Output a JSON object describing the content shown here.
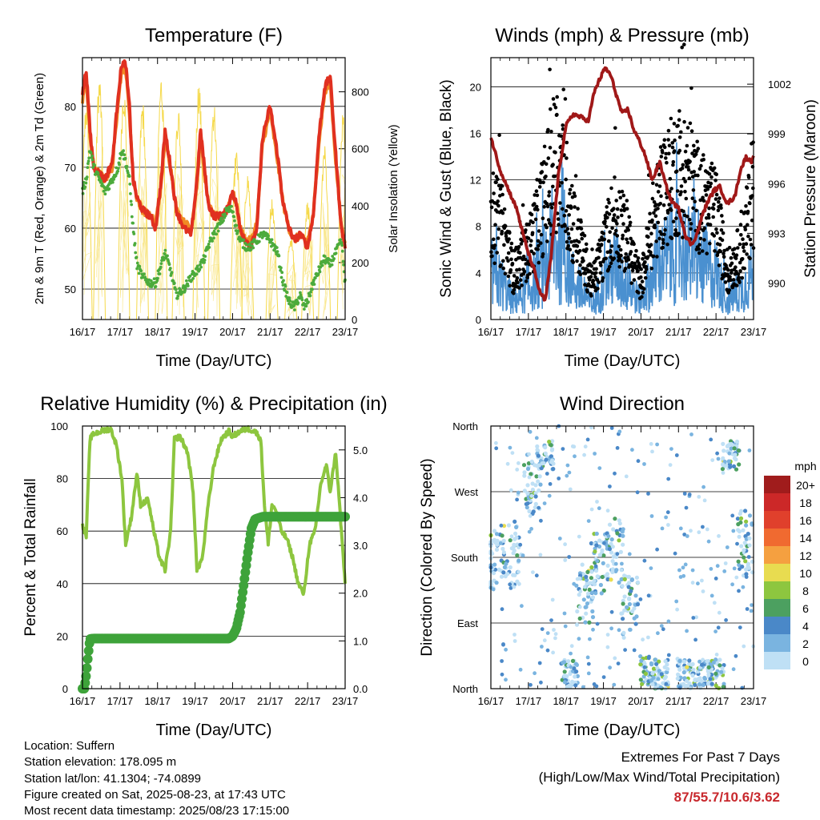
{
  "common": {
    "x_tick_labels": [
      "16/17",
      "17/17",
      "18/17",
      "19/17",
      "20/17",
      "21/17",
      "22/17",
      "23/17"
    ],
    "xlabel": "Time (Day/UTC)"
  },
  "info": {
    "location": "Location: Suffern",
    "elevation": "Station elevation: 178.095 m",
    "latlon": "Station lat/lon: 41.1304; -74.0899",
    "created": "Figure created on Sat, 2025-08-23, at 17:43 UTC",
    "recent": "Most recent data timestamp: 2025/08/23 17:15:00"
  },
  "extremes": {
    "line1": "Extremes For Past 7 Days",
    "line2": "(High/Low/Max Wind/Total Precipitation)",
    "values": "87/55.7/10.6/3.62"
  },
  "chart_data": [
    {
      "id": "temperature",
      "type": "line",
      "title": "Temperature (F)",
      "xlabel": "Time (Day/UTC)",
      "ylabel": "2m & 9m T (Red, Orange) & 2m Td (Green)",
      "y2label": "Solar Insolation (Yellow)",
      "xlim": [
        0,
        7
      ],
      "ylim": [
        45,
        88
      ],
      "y2lim": [
        0,
        920
      ],
      "yticks": [
        50,
        60,
        70,
        80
      ],
      "y2ticks": [
        0,
        200,
        400,
        600,
        800
      ],
      "x": [
        0,
        0.1,
        0.2,
        0.3,
        0.45,
        0.6,
        0.8,
        0.95,
        1.05,
        1.15,
        1.25,
        1.35,
        1.45,
        1.6,
        1.8,
        1.95,
        2.1,
        2.2,
        2.35,
        2.5,
        2.7,
        2.9,
        3.05,
        3.15,
        3.25,
        3.35,
        3.5,
        3.7,
        3.85,
        4.0,
        4.1,
        4.2,
        4.35,
        4.5,
        4.65,
        4.8,
        5.0,
        5.2,
        5.35,
        5.5,
        5.65,
        5.8,
        5.9,
        6.0,
        6.15,
        6.3,
        6.45,
        6.6,
        6.75,
        6.9,
        7.0
      ],
      "series": [
        {
          "name": "2m T",
          "color": "#e03020",
          "values": [
            82,
            86,
            76,
            70,
            69,
            68,
            71,
            82,
            87,
            87,
            80,
            68,
            65,
            63,
            62,
            60,
            68,
            76,
            70,
            63,
            60,
            59,
            68,
            76,
            70,
            64,
            62,
            62,
            63,
            66,
            64,
            60,
            58,
            57,
            60,
            75,
            80,
            72,
            64,
            60,
            58,
            59,
            58,
            57,
            62,
            75,
            83,
            85,
            72,
            60,
            57
          ]
        },
        {
          "name": "9m T",
          "color": "#f08a24",
          "values": [
            81,
            85,
            75,
            70,
            69,
            68,
            70,
            81,
            86,
            86,
            79,
            68,
            65,
            63,
            62,
            61,
            67,
            75,
            70,
            63,
            61,
            60,
            67,
            75,
            69,
            64,
            62,
            62,
            63,
            66,
            64,
            60,
            58,
            58,
            61,
            74,
            79,
            71,
            64,
            60,
            58,
            59,
            58,
            58,
            62,
            74,
            82,
            84,
            71,
            60,
            58
          ]
        },
        {
          "name": "2m Td",
          "color": "#4cab3c",
          "values": [
            66,
            68,
            73,
            70,
            68,
            66,
            68,
            70,
            73,
            71,
            68,
            60,
            54,
            52,
            51,
            51,
            54,
            56,
            53,
            49,
            50,
            52,
            53,
            54,
            55,
            57,
            59,
            61,
            63,
            63,
            60,
            58,
            57,
            57,
            58,
            59,
            58,
            56,
            51,
            48,
            47,
            49,
            47,
            48,
            51,
            53,
            55,
            54,
            56,
            58,
            51
          ]
        },
        {
          "name": "Solar Insolation",
          "axis": "y2",
          "color": "#f5d94a",
          "peaks": [
            0.1,
            0.45,
            1.1,
            1.6,
            2.1,
            2.55,
            3.1,
            3.5,
            4.1,
            4.4,
            5.05,
            5.55,
            6.0,
            6.45,
            6.95
          ],
          "peak_values": [
            780,
            870,
            840,
            780,
            870,
            760,
            850,
            780,
            600,
            520,
            430,
            300,
            420,
            620,
            750
          ]
        }
      ]
    },
    {
      "id": "winds",
      "type": "scatter",
      "title": "Winds (mph) & Pressure (mb)",
      "xlabel": "Time (Day/UTC)",
      "ylabel": "Sonic Wind & Gust (Blue, Black)",
      "y2label": "Station Pressure (Maroon)",
      "xlim": [
        0,
        7
      ],
      "ylim": [
        0,
        22.5
      ],
      "y2lim": [
        987.8,
        1003.6
      ],
      "yticks": [
        0,
        4,
        8,
        12,
        16,
        20
      ],
      "y2ticks": [
        990,
        993,
        996,
        999,
        1002
      ],
      "wind_envelope_x": [
        0,
        0.3,
        0.6,
        1.0,
        1.4,
        1.7,
        2.0,
        2.3,
        2.7,
        3.0,
        3.3,
        3.6,
        4.0,
        4.3,
        4.6,
        5.0,
        5.3,
        5.6,
        6.0,
        6.3,
        6.7,
        7.0
      ],
      "wind_mean": [
        4,
        3,
        1.5,
        2.5,
        4.5,
        6,
        5,
        2.5,
        1.2,
        3,
        4.5,
        3,
        1.5,
        3.5,
        5,
        6,
        5.5,
        4.5,
        4,
        1.5,
        2.5,
        4
      ],
      "gust_mean": [
        9,
        8,
        4,
        6,
        10,
        14,
        11,
        7,
        3,
        6,
        9,
        7,
        3,
        8,
        11,
        13,
        12,
        10,
        9,
        4,
        6,
        11
      ],
      "series": [
        {
          "name": "Sonic Wind",
          "color": "#4a90d0"
        },
        {
          "name": "Gust",
          "color": "#000000"
        },
        {
          "name": "Station Pressure",
          "axis": "y2",
          "color": "#a01818",
          "x": [
            0,
            0.1,
            0.25,
            0.4,
            0.55,
            0.7,
            0.85,
            1.0,
            1.15,
            1.3,
            1.45,
            1.6,
            1.8,
            2.0,
            2.2,
            2.4,
            2.6,
            2.75,
            2.9,
            3.05,
            3.2,
            3.35,
            3.5,
            3.65,
            3.8,
            3.95,
            4.1,
            4.3,
            4.5,
            4.65,
            4.8,
            5.0,
            5.2,
            5.35,
            5.5,
            5.65,
            5.8,
            5.95,
            6.1,
            6.3,
            6.5,
            6.65,
            6.8,
            6.95,
            7.0
          ],
          "values": [
            998.8,
            998.0,
            996.8,
            996.0,
            995.2,
            994.4,
            993.0,
            991.8,
            990.8,
            989.5,
            988.9,
            991.5,
            996.5,
            999.5,
            1000.2,
            1000.0,
            999.8,
            1001.5,
            1002.3,
            1003.0,
            1002.5,
            1001.3,
            1000.2,
            1000.5,
            999.3,
            998.6,
            997.8,
            996.2,
            997.3,
            996.0,
            995.0,
            994.5,
            992.8,
            992.3,
            993.0,
            994.2,
            995.0,
            995.6,
            995.8,
            994.8,
            995.2,
            996.8,
            997.6,
            997.3,
            997.8
          ]
        }
      ]
    },
    {
      "id": "humidity",
      "type": "line",
      "title": "Relative Humidity (%) & Precipitation (in)",
      "xlabel": "Time (Day/UTC)",
      "ylabel": "Percent & Total Rainfall",
      "xlim": [
        0,
        7
      ],
      "ylim": [
        0,
        100
      ],
      "y2lim": [
        0,
        5.5
      ],
      "yticks": [
        0,
        20,
        40,
        60,
        80,
        100
      ],
      "y2ticks": [
        "0.0",
        "1.0",
        "2.0",
        "3.0",
        "4.0",
        "5.0"
      ],
      "series": [
        {
          "name": "Relative Humidity",
          "color": "#8dc63f",
          "x": [
            0,
            0.1,
            0.2,
            0.3,
            0.5,
            0.75,
            0.9,
            1.05,
            1.15,
            1.3,
            1.45,
            1.55,
            1.75,
            1.9,
            2.05,
            2.2,
            2.35,
            2.45,
            2.6,
            2.8,
            2.95,
            3.05,
            3.2,
            3.35,
            3.5,
            3.7,
            3.9,
            4.0,
            4.2,
            4.4,
            4.6,
            4.75,
            4.85,
            4.95,
            5.05,
            5.15,
            5.3,
            5.45,
            5.6,
            5.75,
            5.9,
            6.05,
            6.2,
            6.35,
            6.5,
            6.6,
            6.75,
            6.9,
            7.0
          ],
          "values": [
            62,
            58,
            95,
            97,
            98,
            99,
            93,
            80,
            55,
            65,
            82,
            70,
            72,
            60,
            50,
            45,
            60,
            95,
            96,
            90,
            75,
            45,
            50,
            70,
            85,
            95,
            98,
            96,
            98,
            99,
            98,
            95,
            70,
            55,
            70,
            68,
            60,
            57,
            50,
            40,
            36,
            55,
            60,
            78,
            85,
            75,
            90,
            60,
            40
          ]
        },
        {
          "name": "Total Rainfall",
          "axis": "y2",
          "color": "#3ea33a",
          "x": [
            0,
            0.05,
            0.1,
            0.15,
            0.2,
            0.3,
            0.5,
            1.0,
            1.5,
            2.0,
            2.5,
            3.0,
            3.5,
            3.9,
            4.0,
            4.1,
            4.2,
            4.3,
            4.4,
            4.5,
            4.6,
            4.8,
            5.0,
            5.5,
            6.0,
            6.5,
            7.0
          ],
          "values": [
            0,
            0,
            0.3,
            0.7,
            1.04,
            1.05,
            1.05,
            1.05,
            1.05,
            1.05,
            1.05,
            1.05,
            1.05,
            1.05,
            1.1,
            1.25,
            1.6,
            2.2,
            2.8,
            3.35,
            3.55,
            3.6,
            3.6,
            3.6,
            3.6,
            3.6,
            3.6
          ]
        }
      ]
    },
    {
      "id": "winddir",
      "type": "scatter",
      "title": "Wind Direction",
      "xlabel": "Time (Day/UTC)",
      "ylabel": "Direction (Colored By Speed)",
      "xlim": [
        0,
        7
      ],
      "ylim": [
        0,
        360
      ],
      "yticks": [
        "North",
        "East",
        "South",
        "West",
        "North"
      ],
      "cluster_x": [
        0.1,
        0.55,
        1.1,
        1.45,
        2.1,
        2.5,
        2.9,
        3.3,
        3.7,
        4.2,
        4.5,
        5.2,
        5.6,
        6.0,
        6.4,
        6.8
      ],
      "cluster_dir": [
        180,
        185,
        280,
        320,
        20,
        130,
        170,
        190,
        110,
        25,
        20,
        22,
        18,
        20,
        320,
        200
      ],
      "colorbar": {
        "unit": "mph",
        "labels": [
          "20+",
          "18",
          "16",
          "14",
          "12",
          "10",
          "8",
          "6",
          "4",
          "2",
          "0"
        ],
        "colors": [
          "#a01c1c",
          "#cc2828",
          "#e0402c",
          "#f06a30",
          "#f5a040",
          "#e8dc50",
          "#8dc63f",
          "#4ca060",
          "#4a88c8",
          "#7ab4e0",
          "#bfe0f5"
        ]
      }
    }
  ]
}
